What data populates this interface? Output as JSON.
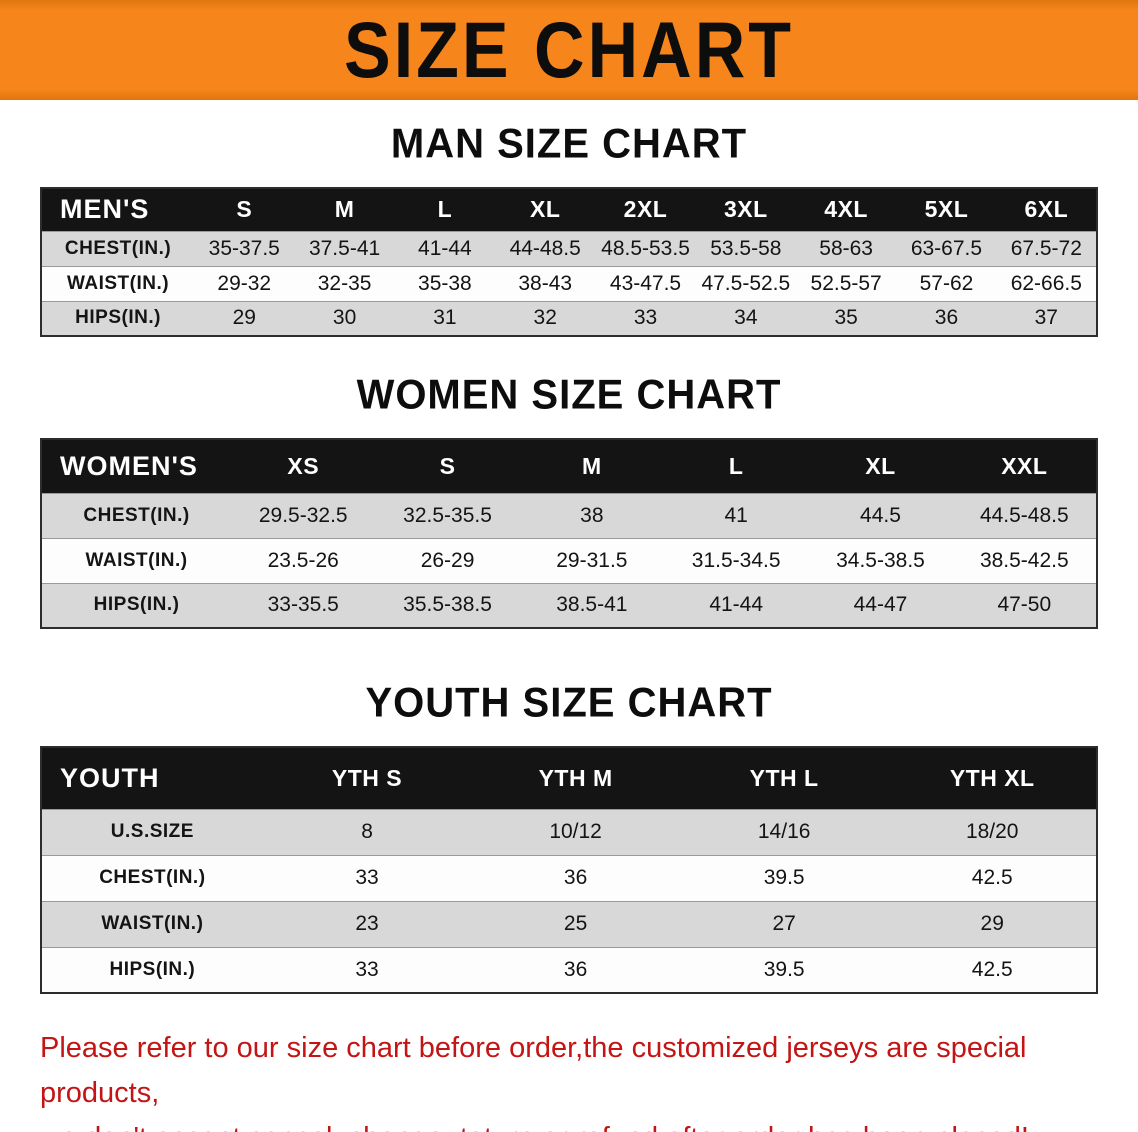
{
  "banner": {
    "title": "SIZE CHART"
  },
  "colors": {
    "banner_bg": "#f6851c",
    "banner_edge": "#df750e",
    "header_bg": "#141414",
    "row_alt_bg": "#d8d8d8",
    "note_color": "#c41414"
  },
  "sections": [
    {
      "id": "men",
      "heading": "MAN SIZE CHART",
      "header": [
        "MEN'S",
        "S",
        "M",
        "L",
        "XL",
        "2XL",
        "3XL",
        "4XL",
        "5XL",
        "6XL"
      ],
      "rows": [
        {
          "label": "CHEST(IN.)",
          "shaded": true,
          "values": [
            "35-37.5",
            "37.5-41",
            "41-44",
            "44-48.5",
            "48.5-53.5",
            "53.5-58",
            "58-63",
            "63-67.5",
            "67.5-72"
          ]
        },
        {
          "label": "WAIST(IN.)",
          "shaded": false,
          "values": [
            "29-32",
            "32-35",
            "35-38",
            "38-43",
            "43-47.5",
            "47.5-52.5",
            "52.5-57",
            "57-62",
            "62-66.5"
          ]
        },
        {
          "label": "HIPS(IN.)",
          "shaded": true,
          "values": [
            "29",
            "30",
            "31",
            "32",
            "33",
            "34",
            "35",
            "36",
            "37"
          ]
        }
      ]
    },
    {
      "id": "women",
      "heading": "WOMEN SIZE CHART",
      "header": [
        "WOMEN'S",
        "XS",
        "S",
        "M",
        "L",
        "XL",
        "XXL"
      ],
      "rows": [
        {
          "label": "CHEST(IN.)",
          "shaded": true,
          "values": [
            "29.5-32.5",
            "32.5-35.5",
            "38",
            "41",
            "44.5",
            "44.5-48.5"
          ]
        },
        {
          "label": "WAIST(IN.)",
          "shaded": false,
          "values": [
            "23.5-26",
            "26-29",
            "29-31.5",
            "31.5-34.5",
            "34.5-38.5",
            "38.5-42.5"
          ]
        },
        {
          "label": "HIPS(IN.)",
          "shaded": true,
          "values": [
            "33-35.5",
            "35.5-38.5",
            "38.5-41",
            "41-44",
            "44-47",
            "47-50"
          ]
        }
      ]
    },
    {
      "id": "youth",
      "heading": "YOUTH SIZE CHART",
      "header": [
        "YOUTH",
        "YTH S",
        "YTH M",
        "YTH L",
        "YTH XL"
      ],
      "rows": [
        {
          "label": "U.S.SIZE",
          "shaded": true,
          "values": [
            "8",
            "10/12",
            "14/16",
            "18/20"
          ]
        },
        {
          "label": "CHEST(IN.)",
          "shaded": false,
          "values": [
            "33",
            "36",
            "39.5",
            "42.5"
          ]
        },
        {
          "label": "WAIST(IN.)",
          "shaded": true,
          "values": [
            "23",
            "25",
            "27",
            "29"
          ]
        },
        {
          "label": "HIPS(IN.)",
          "shaded": false,
          "values": [
            "33",
            "36",
            "39.5",
            "42.5"
          ]
        }
      ]
    }
  ],
  "note": {
    "line1": "Please refer to our size chart before order,the customized jerseys are special products,",
    "line2": "we don't accept cancel, change, teturn or refund after order has been placed!"
  }
}
